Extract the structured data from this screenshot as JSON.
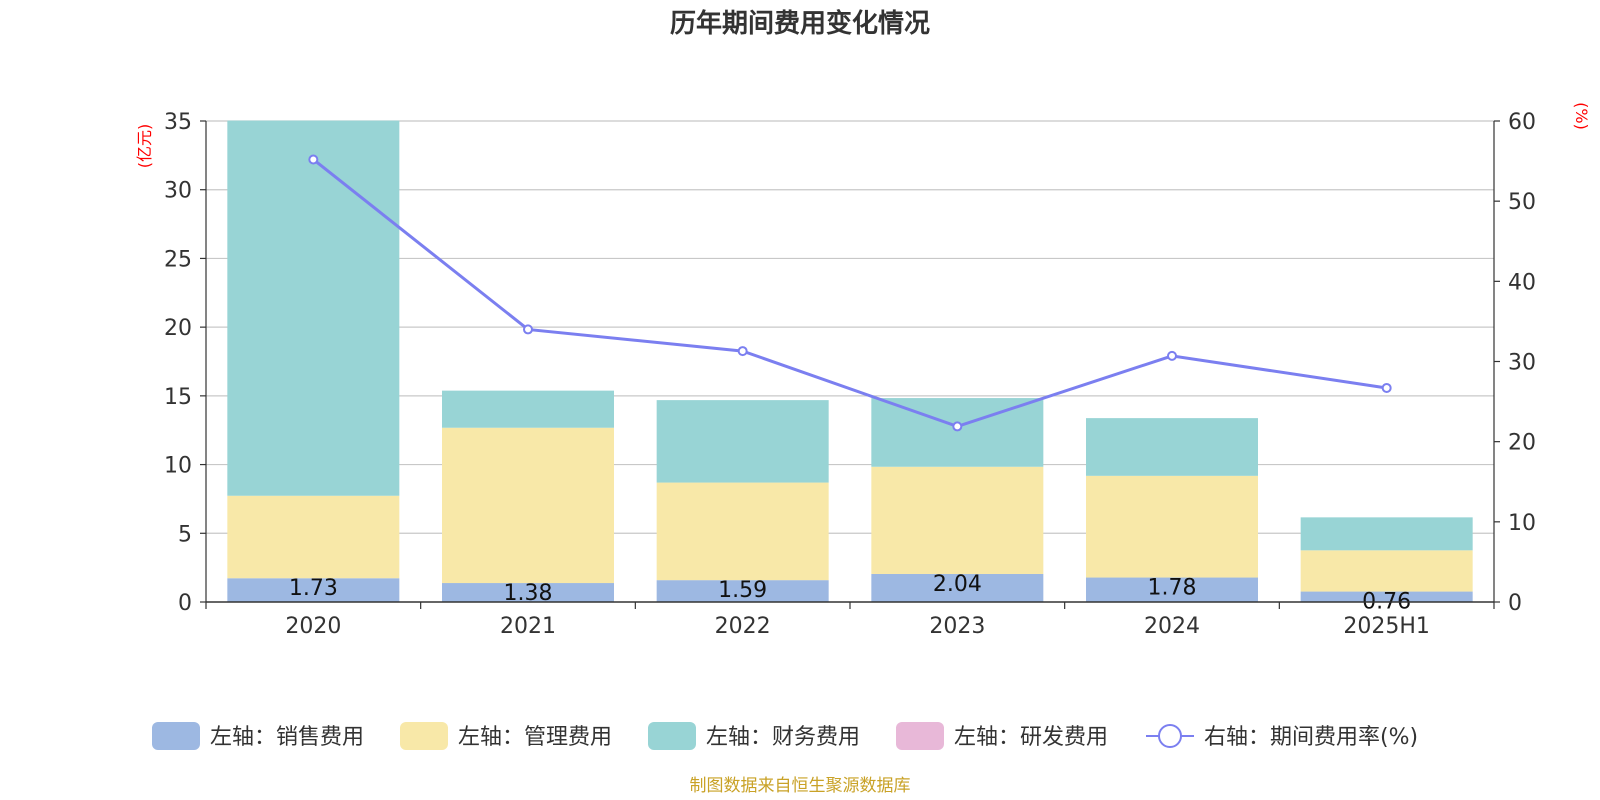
{
  "chart_data": {
    "type": "bar",
    "title": "历年期间费用变化情况",
    "categories": [
      "2020",
      "2021",
      "2022",
      "2023",
      "2024",
      "2025H1"
    ],
    "left_axis": {
      "unit": "(亿元)",
      "ylim": [
        0,
        35
      ],
      "ticks": [
        0,
        5,
        10,
        15,
        20,
        25,
        30,
        35
      ]
    },
    "right_axis": {
      "unit": "(%)",
      "ylim": [
        0,
        60
      ],
      "ticks": [
        0,
        10,
        20,
        30,
        40,
        50,
        60
      ]
    },
    "series": [
      {
        "name": "左轴：销售费用",
        "type": "bar",
        "stack": true,
        "axis": "left",
        "color": "#9db8e2",
        "values": [
          1.73,
          1.38,
          1.59,
          2.04,
          1.78,
          0.76
        ],
        "labels": [
          "1.73",
          "1.38",
          "1.59",
          "2.04",
          "1.78",
          "0.76"
        ]
      },
      {
        "name": "左轴：管理费用",
        "type": "bar",
        "stack": true,
        "axis": "left",
        "color": "#f8e8a8",
        "values": [
          6.0,
          11.3,
          7.1,
          7.8,
          7.4,
          3.0
        ]
      },
      {
        "name": "左轴：财务费用",
        "type": "bar",
        "stack": true,
        "axis": "left",
        "color": "#98d4d5",
        "values": [
          27.3,
          2.7,
          6.0,
          5.0,
          4.2,
          2.4
        ]
      },
      {
        "name": "左轴：研发费用",
        "type": "bar",
        "stack": true,
        "axis": "left",
        "color": "#e8b8d8",
        "values": [
          0,
          0,
          0,
          0,
          0,
          0
        ]
      },
      {
        "name": "右轴：期间费用率(%)",
        "type": "line",
        "axis": "right",
        "color": "#7b7ff0",
        "values": [
          55.2,
          34.0,
          31.3,
          21.9,
          30.7,
          26.7
        ]
      }
    ],
    "grid": true,
    "legend_position": "bottom"
  },
  "source_note": "制图数据来自恒生聚源数据库"
}
